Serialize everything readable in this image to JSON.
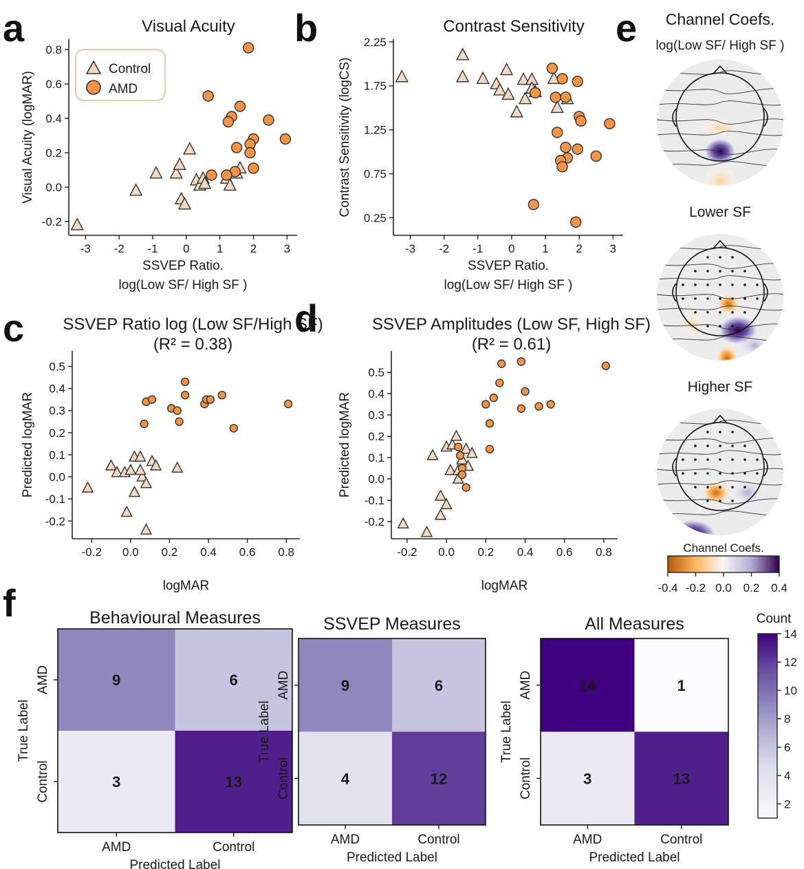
{
  "figure": {
    "panel_letters": [
      "a",
      "b",
      "c",
      "d",
      "e",
      "f"
    ],
    "colors": {
      "control_fill": "#f1d9c4",
      "amd_fill": "#f0944a",
      "edge": "#333333",
      "purple_dark": "#4a1486",
      "orange_dark": "#b35806"
    }
  },
  "chart_data": [
    {
      "id": "a",
      "type": "scatter",
      "title": "Visual Acuity",
      "xlabel": [
        "SSVEP Ratio.",
        "log(Low SF/ High SF )"
      ],
      "ylabel": "Visual Acuity (logMAR)",
      "xlim": [
        -3.5,
        3.3
      ],
      "ylim": [
        -0.28,
        0.86
      ],
      "xticks": [
        -3,
        -2,
        -1,
        0,
        1,
        2,
        3
      ],
      "yticks": [
        -0.2,
        0.0,
        0.2,
        0.4,
        0.6,
        0.8
      ],
      "ytick_labels": [
        "-0.2",
        "0.0",
        "0.2",
        "0.4",
        "0.6",
        "0.8"
      ],
      "legend": {
        "position": "top-left",
        "entries": [
          "Control",
          "AMD"
        ]
      },
      "series": [
        {
          "name": "Control",
          "marker": "triangle",
          "points": [
            [
              -3.25,
              -0.22
            ],
            [
              -1.5,
              -0.02
            ],
            [
              -0.9,
              0.08
            ],
            [
              -0.3,
              0.08
            ],
            [
              -0.2,
              0.13
            ],
            [
              0.1,
              0.22
            ],
            [
              -0.15,
              -0.07
            ],
            [
              -0.05,
              -0.1
            ],
            [
              0.3,
              0.04
            ],
            [
              0.4,
              0.01
            ],
            [
              0.5,
              0.05
            ],
            [
              0.55,
              0.02
            ],
            [
              1.2,
              0.05
            ],
            [
              1.3,
              0.01
            ],
            [
              1.5,
              0.08
            ],
            [
              1.6,
              0.11
            ]
          ]
        },
        {
          "name": "AMD",
          "marker": "circle",
          "points": [
            [
              1.85,
              0.81
            ],
            [
              0.65,
              0.53
            ],
            [
              1.6,
              0.47
            ],
            [
              1.35,
              0.41
            ],
            [
              1.25,
              0.38
            ],
            [
              2.45,
              0.39
            ],
            [
              2.0,
              0.28
            ],
            [
              2.95,
              0.28
            ],
            [
              1.9,
              0.25
            ],
            [
              1.5,
              0.23
            ],
            [
              1.9,
              0.2
            ],
            [
              1.45,
              0.09
            ],
            [
              2.0,
              0.11
            ],
            [
              0.75,
              0.07
            ],
            [
              1.2,
              0.07
            ]
          ]
        }
      ]
    },
    {
      "id": "b",
      "type": "scatter",
      "title": "Contrast Sensitivity",
      "xlabel": [
        "SSVEP Ratio.",
        "log(Low SF/ High SF )"
      ],
      "ylabel": "Contrast Sensitivity (logCS)",
      "xlim": [
        -3.5,
        3.3
      ],
      "ylim": [
        0.05,
        2.28
      ],
      "xticks": [
        -3,
        -2,
        -1,
        0,
        1,
        2,
        3
      ],
      "yticks": [
        0.25,
        0.75,
        1.25,
        1.75,
        2.25
      ],
      "ytick_labels": [
        "0.25",
        "0.75",
        "1.25",
        "1.75",
        "2.25"
      ],
      "series": [
        {
          "name": "Control",
          "marker": "triangle",
          "points": [
            [
              -3.25,
              1.85
            ],
            [
              -1.45,
              2.1
            ],
            [
              -1.45,
              1.85
            ],
            [
              -0.85,
              1.83
            ],
            [
              -0.45,
              1.77
            ],
            [
              -0.35,
              1.7
            ],
            [
              -0.15,
              1.93
            ],
            [
              -0.1,
              1.65
            ],
            [
              0.15,
              1.45
            ],
            [
              0.35,
              1.82
            ],
            [
              0.4,
              1.6
            ],
            [
              0.6,
              1.82
            ],
            [
              0.6,
              1.72
            ],
            [
              0.7,
              1.68
            ],
            [
              1.25,
              1.83
            ],
            [
              1.35,
              1.5
            ],
            [
              1.65,
              1.6
            ]
          ]
        },
        {
          "name": "AMD",
          "marker": "circle",
          "points": [
            [
              1.2,
              1.95
            ],
            [
              1.5,
              1.83
            ],
            [
              1.95,
              1.8
            ],
            [
              1.3,
              1.62
            ],
            [
              1.6,
              1.62
            ],
            [
              2.0,
              1.4
            ],
            [
              2.05,
              1.35
            ],
            [
              0.7,
              1.67
            ],
            [
              2.9,
              1.32
            ],
            [
              1.35,
              1.22
            ],
            [
              1.6,
              1.05
            ],
            [
              1.95,
              1.03
            ],
            [
              1.65,
              0.93
            ],
            [
              1.45,
              0.9
            ],
            [
              1.5,
              0.83
            ],
            [
              2.5,
              0.95
            ],
            [
              0.65,
              0.4
            ],
            [
              1.9,
              0.2
            ]
          ]
        }
      ]
    },
    {
      "id": "c",
      "type": "scatter",
      "title": "SSVEP Ratio log (Low SF/High SF)",
      "subtitle": "(R² = 0.38)",
      "xlabel": [
        "logMAR"
      ],
      "ylabel": "Predicted logMAR",
      "xlim": [
        -0.3,
        0.87
      ],
      "ylim": [
        -0.28,
        0.57
      ],
      "xticks": [
        -0.2,
        0.0,
        0.2,
        0.4,
        0.6,
        0.8
      ],
      "xtick_labels": [
        "-0.2",
        "0.0",
        "0.2",
        "0.4",
        "0.6",
        "0.8"
      ],
      "yticks": [
        -0.2,
        -0.1,
        0.0,
        0.1,
        0.2,
        0.3,
        0.4,
        0.5
      ],
      "ytick_labels": [
        "-0.2",
        "-0.1",
        "0.0",
        "0.1",
        "0.2",
        "0.3",
        "0.4",
        "0.5"
      ],
      "series": [
        {
          "name": "Control",
          "marker": "triangle",
          "points": [
            [
              -0.22,
              -0.05
            ],
            [
              -0.1,
              0.05
            ],
            [
              -0.07,
              0.02
            ],
            [
              -0.03,
              0.02
            ],
            [
              0.0,
              0.03
            ],
            [
              0.02,
              0.09
            ],
            [
              0.02,
              -0.07
            ],
            [
              0.05,
              0.09
            ],
            [
              0.06,
              0.0
            ],
            [
              0.08,
              -0.03
            ],
            [
              0.11,
              0.07
            ],
            [
              0.13,
              0.05
            ],
            [
              0.24,
              0.04
            ],
            [
              -0.02,
              -0.16
            ],
            [
              0.08,
              -0.24
            ],
            [
              0.05,
              0.03
            ]
          ]
        },
        {
          "name": "AMD",
          "marker": "circle",
          "points": [
            [
              0.07,
              0.24
            ],
            [
              0.08,
              0.34
            ],
            [
              0.11,
              0.35
            ],
            [
              0.21,
              0.31
            ],
            [
              0.24,
              0.3
            ],
            [
              0.25,
              0.25
            ],
            [
              0.28,
              0.43
            ],
            [
              0.28,
              0.37
            ],
            [
              0.38,
              0.33
            ],
            [
              0.39,
              0.35
            ],
            [
              0.41,
              0.35
            ],
            [
              0.47,
              0.37
            ],
            [
              0.53,
              0.22
            ],
            [
              0.81,
              0.33
            ]
          ]
        }
      ]
    },
    {
      "id": "d",
      "type": "scatter",
      "title": "SSVEP Amplitudes (Low SF, High SF)",
      "subtitle": "(R² = 0.61)",
      "xlabel": [
        "logMAR"
      ],
      "ylabel": "Predicted logMAR",
      "xlim": [
        -0.28,
        0.87
      ],
      "ylim": [
        -0.28,
        0.6
      ],
      "xticks": [
        -0.2,
        0.0,
        0.2,
        0.4,
        0.6,
        0.8
      ],
      "xtick_labels": [
        "-0.2",
        "0.0",
        "0.2",
        "0.4",
        "0.6",
        "0.8"
      ],
      "yticks": [
        -0.2,
        -0.1,
        0.0,
        0.1,
        0.2,
        0.3,
        0.4,
        0.5
      ],
      "ytick_labels": [
        "-0.2",
        "-0.1",
        "0.0",
        "0.1",
        "0.2",
        "0.3",
        "0.4",
        "0.5"
      ],
      "series": [
        {
          "name": "Control",
          "marker": "triangle",
          "points": [
            [
              -0.22,
              -0.21
            ],
            [
              -0.1,
              -0.25
            ],
            [
              -0.07,
              0.11
            ],
            [
              -0.03,
              -0.08
            ],
            [
              -0.03,
              -0.17
            ],
            [
              0.0,
              -0.12
            ],
            [
              0.0,
              0.15
            ],
            [
              0.02,
              0.04
            ],
            [
              0.03,
              0.16
            ],
            [
              0.05,
              0.2
            ],
            [
              0.06,
              0.04
            ],
            [
              0.06,
              0.0
            ],
            [
              0.08,
              0.09
            ],
            [
              0.1,
              0.14
            ],
            [
              0.11,
              0.06
            ],
            [
              0.13,
              0.12
            ]
          ]
        },
        {
          "name": "AMD",
          "marker": "circle",
          "points": [
            [
              0.06,
              0.15
            ],
            [
              0.07,
              0.11
            ],
            [
              0.08,
              0.05
            ],
            [
              0.08,
              0.02
            ],
            [
              0.1,
              -0.04
            ],
            [
              0.22,
              0.14
            ],
            [
              0.22,
              0.26
            ],
            [
              0.2,
              0.35
            ],
            [
              0.24,
              0.38
            ],
            [
              0.27,
              0.45
            ],
            [
              0.28,
              0.54
            ],
            [
              0.38,
              0.55
            ],
            [
              0.4,
              0.41
            ],
            [
              0.38,
              0.33
            ],
            [
              0.47,
              0.34
            ],
            [
              0.53,
              0.35
            ],
            [
              0.81,
              0.53
            ]
          ]
        }
      ]
    },
    {
      "id": "e",
      "type": "heatmap",
      "panel_label": "e",
      "maps": [
        {
          "title": "Channel Coefs.",
          "subtitle": "log(Low SF/ High SF )"
        },
        {
          "title": "Lower SF"
        },
        {
          "title": "Higher SF"
        }
      ],
      "colorbar": {
        "label": "Channel Coefs.",
        "range": [
          -0.4,
          0.4
        ],
        "ticks": [
          -0.4,
          -0.2,
          0.0,
          0.2,
          0.4
        ],
        "tick_labels": [
          "-0.4",
          "-0.2",
          "0.0",
          "0.2",
          "0.4"
        ]
      }
    },
    {
      "id": "f",
      "type": "heatmap",
      "matrices": [
        {
          "title": "Behavioural Measures",
          "rows": [
            "AMD",
            "Control"
          ],
          "cols": [
            "AMD",
            "Control"
          ],
          "values": [
            [
              9,
              6
            ],
            [
              3,
              13
            ]
          ],
          "ylabel": "True Label",
          "xlabel": "Predicted Label"
        },
        {
          "title": "SSVEP Measures",
          "rows": [
            "AMD",
            "Control"
          ],
          "cols": [
            "AMD",
            "Control"
          ],
          "values": [
            [
              9,
              6
            ],
            [
              4,
              12
            ]
          ],
          "ylabel": "True Label",
          "xlabel": "Predicted Label"
        },
        {
          "title": "All Measures",
          "rows": [
            "AMD",
            "Control"
          ],
          "cols": [
            "AMD",
            "Control"
          ],
          "values": [
            [
              14,
              1
            ],
            [
              3,
              13
            ]
          ],
          "ylabel": "True Label",
          "xlabel": "Predicted Label"
        }
      ],
      "colorbar": {
        "label": "Count",
        "range": [
          1,
          14
        ],
        "ticks": [
          2,
          4,
          6,
          8,
          10,
          12,
          14
        ]
      }
    }
  ]
}
